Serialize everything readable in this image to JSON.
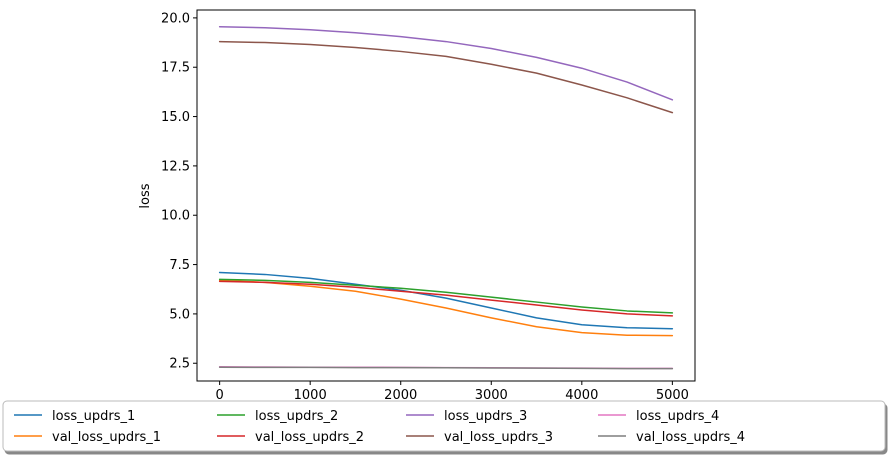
{
  "chart_data": {
    "type": "line",
    "title": "",
    "xlabel": "",
    "ylabel": "loss",
    "xlim": [
      -250,
      5250
    ],
    "ylim": [
      1.6,
      20.4
    ],
    "xticks": [
      0,
      1000,
      2000,
      3000,
      4000,
      5000
    ],
    "yticks": [
      2.5,
      5.0,
      7.5,
      10.0,
      12.5,
      15.0,
      17.5,
      20.0
    ],
    "grid": false,
    "legend": {
      "placement": "bottom-center",
      "columns": 5
    },
    "x": [
      0,
      500,
      1000,
      1500,
      2000,
      2500,
      3000,
      3500,
      4000,
      4500,
      5000
    ],
    "series": [
      {
        "name": "loss_updrs_1",
        "color": "#1f77b4",
        "values": [
          7.1,
          7.0,
          6.8,
          6.5,
          6.2,
          5.8,
          5.3,
          4.8,
          4.45,
          4.3,
          4.25
        ]
      },
      {
        "name": "val_loss_updrs_1",
        "color": "#ff7f0e",
        "values": [
          6.7,
          6.6,
          6.4,
          6.15,
          5.75,
          5.3,
          4.8,
          4.35,
          4.05,
          3.92,
          3.9
        ]
      },
      {
        "name": "loss_updrs_2",
        "color": "#2ca02c",
        "values": [
          6.75,
          6.7,
          6.6,
          6.45,
          6.3,
          6.1,
          5.85,
          5.6,
          5.35,
          5.15,
          5.05
        ]
      },
      {
        "name": "val_loss_updrs_2",
        "color": "#d62728",
        "values": [
          6.65,
          6.6,
          6.5,
          6.35,
          6.15,
          5.95,
          5.7,
          5.45,
          5.2,
          5.0,
          4.9
        ]
      },
      {
        "name": "loss_updrs_3",
        "color": "#9467bd",
        "values": [
          19.55,
          19.5,
          19.4,
          19.25,
          19.05,
          18.8,
          18.45,
          18.0,
          17.45,
          16.75,
          15.85
        ]
      },
      {
        "name": "val_loss_updrs_3",
        "color": "#8c564b",
        "values": [
          18.8,
          18.75,
          18.65,
          18.5,
          18.3,
          18.05,
          17.65,
          17.2,
          16.6,
          15.95,
          15.2
        ]
      },
      {
        "name": "loss_updrs_4",
        "color": "#e377c2",
        "values": [
          2.32,
          2.31,
          2.3,
          2.3,
          2.29,
          2.28,
          2.27,
          2.26,
          2.25,
          2.24,
          2.24
        ]
      },
      {
        "name": "val_loss_updrs_4",
        "color": "#7f7f7f",
        "values": [
          2.3,
          2.29,
          2.29,
          2.28,
          2.28,
          2.27,
          2.26,
          2.25,
          2.24,
          2.23,
          2.23
        ]
      }
    ]
  }
}
